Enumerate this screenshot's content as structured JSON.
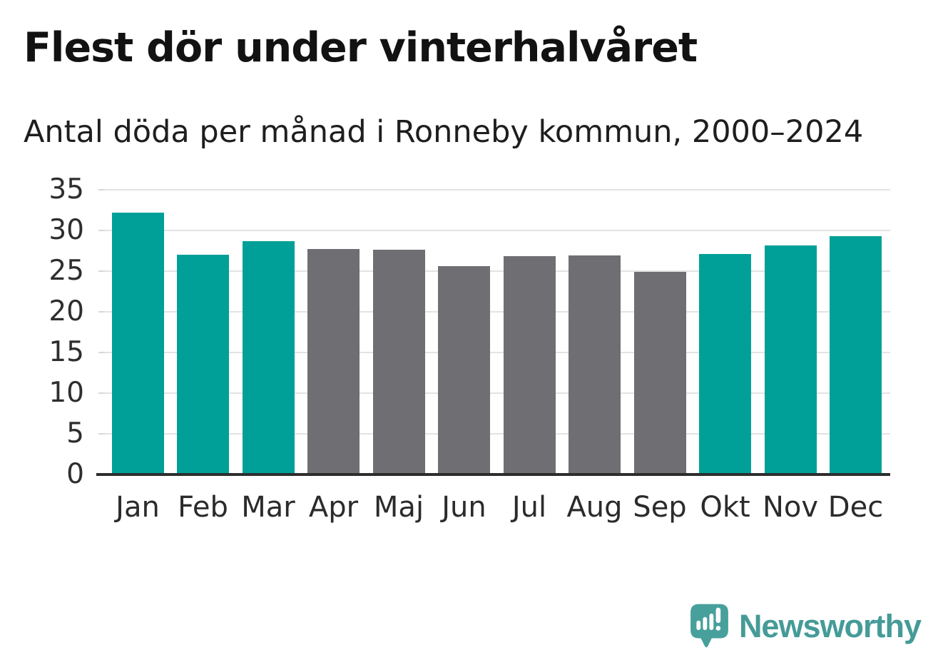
{
  "header": {
    "title": "Flest dör under vinterhalvåret",
    "subtitle": "Antal döda per månad i Ronneby kommun, 2000–2024"
  },
  "chart_data": {
    "type": "bar",
    "title": "Flest dör under vinterhalvåret",
    "subtitle": "Antal döda per månad i Ronneby kommun, 2000–2024",
    "categories": [
      "Jan",
      "Feb",
      "Mar",
      "Apr",
      "Maj",
      "Jun",
      "Jul",
      "Aug",
      "Sep",
      "Okt",
      "Nov",
      "Dec"
    ],
    "values": [
      32.2,
      27.0,
      28.7,
      27.7,
      27.6,
      25.6,
      26.8,
      26.9,
      24.9,
      27.1,
      28.2,
      29.3
    ],
    "bar_colors": [
      "teal",
      "teal",
      "teal",
      "gray",
      "gray",
      "gray",
      "gray",
      "gray",
      "gray",
      "teal",
      "teal",
      "teal"
    ],
    "xlabel": "",
    "ylabel": "",
    "ylim": [
      0,
      35
    ],
    "yticks": [
      0,
      5,
      10,
      15,
      20,
      25,
      30,
      35
    ],
    "grid": "horizontal",
    "legend": "none"
  },
  "colors": {
    "teal": "#00a098",
    "gray": "#6e6e73",
    "grid": "#e3e3e3",
    "axis": "#2d2d2d",
    "tick_label": "#2e2e2e",
    "title": "#121212",
    "subtitle": "#1e1e1e",
    "logo_bubble": "#47a09c",
    "logo_text": "#459b97"
  },
  "footer": {
    "brand": "Newsworthy",
    "logo_icon": "speech-bubble-bar-chart-icon"
  }
}
